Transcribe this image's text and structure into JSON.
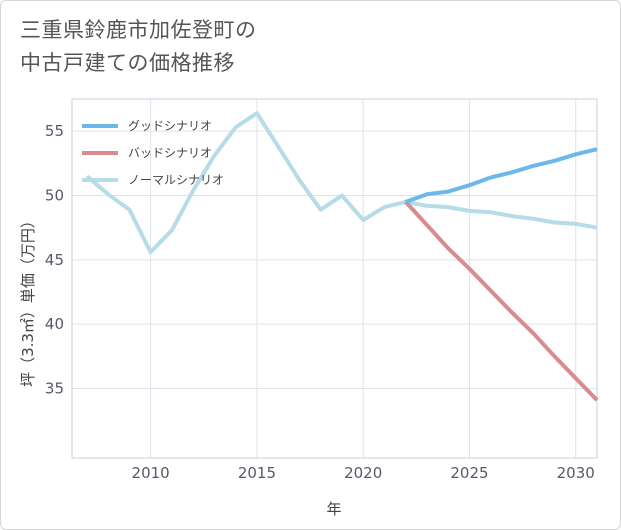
{
  "title_lines": [
    "三重県鈴鹿市加佐登町の",
    "中古戸建ての価格推移"
  ],
  "chart_data": {
    "type": "line",
    "xlabel": "年",
    "ylabel": "坪（3.3㎡）単価（万円）",
    "xlim": [
      2006.3,
      2031
    ],
    "ylim": [
      29.6,
      57.5
    ],
    "x_ticks": [
      2010,
      2015,
      2020,
      2025,
      2030
    ],
    "y_ticks": [
      35,
      40,
      45,
      50,
      55
    ],
    "legend_position": "top-left",
    "series": [
      {
        "name": "グッドシナリオ",
        "color": "#6cb8ea",
        "x": [
          2022,
          2023,
          2024,
          2025,
          2026,
          2027,
          2028,
          2029,
          2030,
          2031
        ],
        "y": [
          49.5,
          50.1,
          50.3,
          50.8,
          51.4,
          51.8,
          52.3,
          52.7,
          53.2,
          53.6
        ]
      },
      {
        "name": "バッドシナリオ",
        "color": "#db8a8f",
        "x": [
          2022,
          2023,
          2024,
          2025,
          2026,
          2027,
          2028,
          2029,
          2030,
          2031
        ],
        "y": [
          49.5,
          47.7,
          45.9,
          44.3,
          42.6,
          40.9,
          39.3,
          37.5,
          35.8,
          34.1
        ]
      },
      {
        "name": "ノーマルシナリオ",
        "color": "#b6dbe9",
        "x": [
          2007,
          2008,
          2009,
          2010,
          2011,
          2012,
          2013,
          2014,
          2015,
          2016,
          2017,
          2018,
          2019,
          2020,
          2021,
          2022,
          2023,
          2024,
          2025,
          2026,
          2027,
          2028,
          2029,
          2030,
          2031
        ],
        "y": [
          51.5,
          50.1,
          48.9,
          45.6,
          47.3,
          50.4,
          53.1,
          55.3,
          56.4,
          53.8,
          51.2,
          48.9,
          50.0,
          48.1,
          49.1,
          49.5,
          49.2,
          49.1,
          48.8,
          48.7,
          48.4,
          48.2,
          47.9,
          47.8,
          47.5
        ]
      }
    ]
  }
}
